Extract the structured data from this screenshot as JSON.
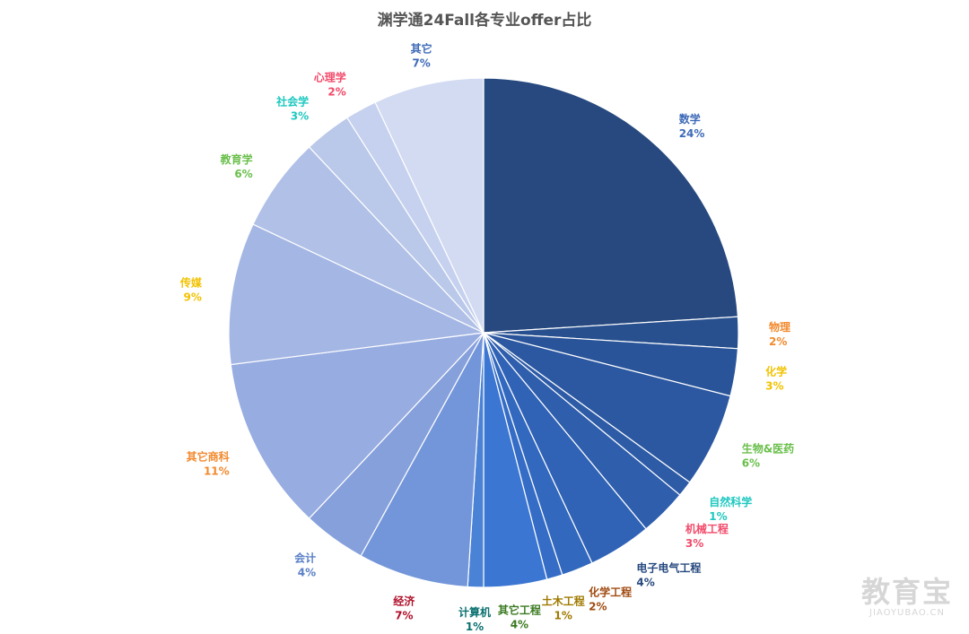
{
  "chart_data": {
    "type": "pie",
    "title": "渊学通24Fall各专业offer占比",
    "start_angle_deg": 0,
    "direction": "clockwise",
    "slices": [
      {
        "name": "数学",
        "value": 24,
        "label": "24%",
        "color": "#27497f",
        "label_color": "#3d6ab8"
      },
      {
        "name": "物理",
        "value": 2,
        "label": "2%",
        "color": "#28508f",
        "label_color": "#f28a2e"
      },
      {
        "name": "化学",
        "value": 3,
        "label": "3%",
        "color": "#2a5499",
        "label_color": "#f2c200"
      },
      {
        "name": "生物&医药",
        "value": 6,
        "label": "6%",
        "color": "#2c58a1",
        "label_color": "#6abf4b"
      },
      {
        "name": "自然科学",
        "value": 1,
        "label": "1%",
        "color": "#2d5ba6",
        "label_color": "#1ec8c0"
      },
      {
        "name": "机械工程",
        "value": 3,
        "label": "3%",
        "color": "#2e5eac",
        "label_color": "#f24a6a"
      },
      {
        "name": "电子电气工程",
        "value": 4,
        "label": "4%",
        "color": "#3063b6",
        "label_color": "#27497f"
      },
      {
        "name": "化学工程",
        "value": 2,
        "label": "2%",
        "color": "#3268be",
        "label_color": "#a04a10"
      },
      {
        "name": "土木工程",
        "value": 1,
        "label": "1%",
        "color": "#356dc6",
        "label_color": "#a07a00"
      },
      {
        "name": "其它工程",
        "value": 4,
        "label": "4%",
        "color": "#3b76d2",
        "label_color": "#3a7a20"
      },
      {
        "name": "计算机",
        "value": 1,
        "label": "1%",
        "color": "#4a82d6",
        "label_color": "#0a7070"
      },
      {
        "name": "经济",
        "value": 7,
        "label": "7%",
        "color": "#7396da",
        "label_color": "#b0102a"
      },
      {
        "name": "会计",
        "value": 4,
        "label": "4%",
        "color": "#86a0dc",
        "label_color": "#5a80c8"
      },
      {
        "name": "其它商科",
        "value": 11,
        "label": "11%",
        "color": "#97ace0",
        "label_color": "#f28a2e"
      },
      {
        "name": "传媒",
        "value": 9,
        "label": "9%",
        "color": "#a4b6e3",
        "label_color": "#f2c200"
      },
      {
        "name": "教育学",
        "value": 6,
        "label": "6%",
        "color": "#b0c0e7",
        "label_color": "#6abf4b"
      },
      {
        "name": "社会学",
        "value": 3,
        "label": "3%",
        "color": "#bac8ea",
        "label_color": "#1ec8c0"
      },
      {
        "name": "心理学",
        "value": 2,
        "label": "2%",
        "color": "#c5d1ee",
        "label_color": "#f24a6a"
      },
      {
        "name": "其它",
        "value": 7,
        "label": "7%",
        "color": "#d2dbf2",
        "label_color": "#3d6ab8"
      }
    ]
  },
  "watermark": {
    "main": "教育宝",
    "sub": "JIAOYUBAO.CN"
  }
}
